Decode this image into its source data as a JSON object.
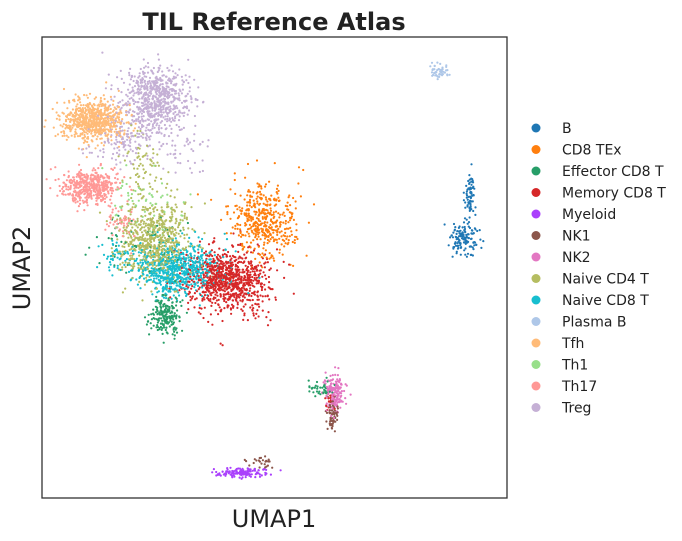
{
  "chart_data": {
    "type": "scatter",
    "title": "TIL Reference Atlas",
    "xlabel": "UMAP1",
    "ylabel": "UMAP2",
    "xlim": [
      -7,
      13
    ],
    "ylim": [
      -10,
      10
    ],
    "grid": false,
    "ticks_shown": false,
    "legend_position": "right",
    "series": [
      {
        "name": "B",
        "color": "#1f77b4",
        "clusters": [
          {
            "cx": 11.4,
            "cy": 3.0,
            "sx": 0.12,
            "sy": 0.6,
            "n": 70
          },
          {
            "cx": 11.2,
            "cy": 1.2,
            "sx": 0.3,
            "sy": 0.35,
            "n": 130
          }
        ]
      },
      {
        "name": "CD8 TEx",
        "color": "#ff7f0e",
        "clusters": [
          {
            "cx": 2.5,
            "cy": 2.0,
            "sx": 0.7,
            "sy": 0.8,
            "n": 450
          }
        ]
      },
      {
        "name": "Effector CD8 T",
        "color": "#279e68",
        "clusters": [
          {
            "cx": -1.7,
            "cy": -2.1,
            "sx": 0.3,
            "sy": 0.4,
            "n": 200
          },
          {
            "cx": -2.3,
            "cy": 1.0,
            "sx": 1.0,
            "sy": 0.7,
            "n": 60
          },
          {
            "cx": 5.0,
            "cy": -5.2,
            "sx": 0.3,
            "sy": 0.2,
            "n": 40
          }
        ]
      },
      {
        "name": "Memory CD8 T",
        "color": "#d62728",
        "clusters": [
          {
            "cx": 1.0,
            "cy": -0.5,
            "sx": 0.85,
            "sy": 0.7,
            "n": 900
          },
          {
            "cx": 5.3,
            "cy": -5.8,
            "sx": 0.12,
            "sy": 0.2,
            "n": 15
          }
        ]
      },
      {
        "name": "Myeloid",
        "color": "#aa40fc",
        "clusters": [
          {
            "cx": 1.6,
            "cy": -8.9,
            "sx": 0.5,
            "sy": 0.1,
            "n": 140
          }
        ]
      },
      {
        "name": "NK1",
        "color": "#8c564b",
        "clusters": [
          {
            "cx": 5.5,
            "cy": -6.4,
            "sx": 0.12,
            "sy": 0.35,
            "n": 70
          },
          {
            "cx": 2.4,
            "cy": -8.4,
            "sx": 0.3,
            "sy": 0.15,
            "n": 25
          }
        ]
      },
      {
        "name": "NK2",
        "color": "#e377c2",
        "clusters": [
          {
            "cx": 5.6,
            "cy": -5.5,
            "sx": 0.22,
            "sy": 0.4,
            "n": 180
          }
        ]
      },
      {
        "name": "Naive CD4 T",
        "color": "#b5bd61",
        "clusters": [
          {
            "cx": -2.2,
            "cy": 1.2,
            "sx": 0.75,
            "sy": 0.85,
            "n": 700
          },
          {
            "cx": -2.7,
            "cy": 4.5,
            "sx": 0.5,
            "sy": 0.6,
            "n": 60
          }
        ]
      },
      {
        "name": "Naive CD8 T",
        "color": "#17becf",
        "clusters": [
          {
            "cx": -1.2,
            "cy": -0.1,
            "sx": 0.9,
            "sy": 0.55,
            "n": 700
          },
          {
            "cx": -3.8,
            "cy": 0.5,
            "sx": 0.3,
            "sy": 0.3,
            "n": 40
          }
        ]
      },
      {
        "name": "Plasma B",
        "color": "#aec7e8",
        "clusters": [
          {
            "cx": 10.1,
            "cy": 8.5,
            "sx": 0.2,
            "sy": 0.18,
            "n": 50
          }
        ]
      },
      {
        "name": "Tfh",
        "color": "#ffbb78",
        "clusters": [
          {
            "cx": -4.8,
            "cy": 6.4,
            "sx": 0.7,
            "sy": 0.45,
            "n": 700
          }
        ]
      },
      {
        "name": "Th1",
        "color": "#98df8a",
        "clusters": [
          {
            "cx": -2.5,
            "cy": 2.8,
            "sx": 1.0,
            "sy": 0.8,
            "n": 60
          }
        ]
      },
      {
        "name": "Th17",
        "color": "#ff9896",
        "clusters": [
          {
            "cx": -5.0,
            "cy": 3.5,
            "sx": 0.6,
            "sy": 0.35,
            "n": 450
          },
          {
            "cx": -3.6,
            "cy": 2.0,
            "sx": 0.4,
            "sy": 0.4,
            "n": 60
          }
        ]
      },
      {
        "name": "Treg",
        "color": "#c5b0d5",
        "clusters": [
          {
            "cx": -2.1,
            "cy": 7.3,
            "sx": 0.75,
            "sy": 0.75,
            "n": 700
          },
          {
            "cx": -3.5,
            "cy": 5.5,
            "sx": 0.8,
            "sy": 0.6,
            "n": 120
          },
          {
            "cx": -1.0,
            "cy": 5.0,
            "sx": 0.6,
            "sy": 0.5,
            "n": 40
          }
        ]
      }
    ]
  }
}
